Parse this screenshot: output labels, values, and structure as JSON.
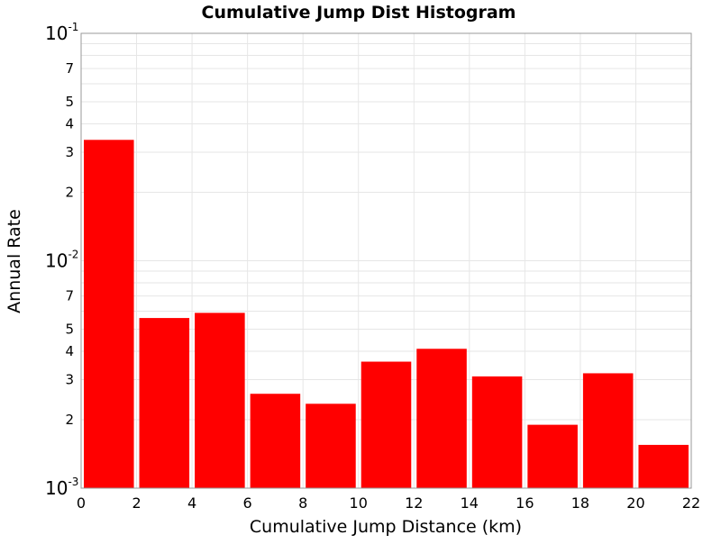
{
  "chart_data": {
    "type": "bar",
    "title": "Cumulative Jump Dist Histogram",
    "xlabel": "Cumulative Jump Distance (km)",
    "ylabel": "Annual Rate",
    "x_scale": "linear",
    "y_scale": "log",
    "xlim": [
      0,
      22
    ],
    "ylim": [
      0.001,
      0.1
    ],
    "x_ticks": [
      "0",
      "2",
      "4",
      "6",
      "8",
      "10",
      "12",
      "14",
      "16",
      "18",
      "20",
      "22"
    ],
    "y_major_ticks": [
      {
        "base": "10",
        "exp": "-3",
        "value": 0.001
      },
      {
        "base": "10",
        "exp": "-2",
        "value": 0.01
      },
      {
        "base": "10",
        "exp": "-1",
        "value": 0.1
      }
    ],
    "y_minor_tick_labels": [
      {
        "label": "2",
        "value": 0.002
      },
      {
        "label": "3",
        "value": 0.003
      },
      {
        "label": "4",
        "value": 0.004
      },
      {
        "label": "5",
        "value": 0.005
      },
      {
        "label": "7",
        "value": 0.007
      },
      {
        "label": "2",
        "value": 0.02
      },
      {
        "label": "3",
        "value": 0.03
      },
      {
        "label": "4",
        "value": 0.04
      },
      {
        "label": "5",
        "value": 0.05
      },
      {
        "label": "7",
        "value": 0.07
      }
    ],
    "bars": [
      {
        "x_start": 0,
        "x_end": 2,
        "value": 0.034
      },
      {
        "x_start": 2,
        "x_end": 4,
        "value": 0.0056
      },
      {
        "x_start": 4,
        "x_end": 6,
        "value": 0.0059
      },
      {
        "x_start": 6,
        "x_end": 8,
        "value": 0.0026
      },
      {
        "x_start": 8,
        "x_end": 10,
        "value": 0.00235
      },
      {
        "x_start": 10,
        "x_end": 12,
        "value": 0.0036
      },
      {
        "x_start": 12,
        "x_end": 14,
        "value": 0.0041
      },
      {
        "x_start": 14,
        "x_end": 16,
        "value": 0.0031
      },
      {
        "x_start": 16,
        "x_end": 18,
        "value": 0.0019
      },
      {
        "x_start": 18,
        "x_end": 20,
        "value": 0.0032
      },
      {
        "x_start": 20,
        "x_end": 22,
        "value": 0.00155
      }
    ],
    "bar_color": "#ff0000",
    "grid": true,
    "grid_color": "#e6e6e6",
    "legend": false
  }
}
